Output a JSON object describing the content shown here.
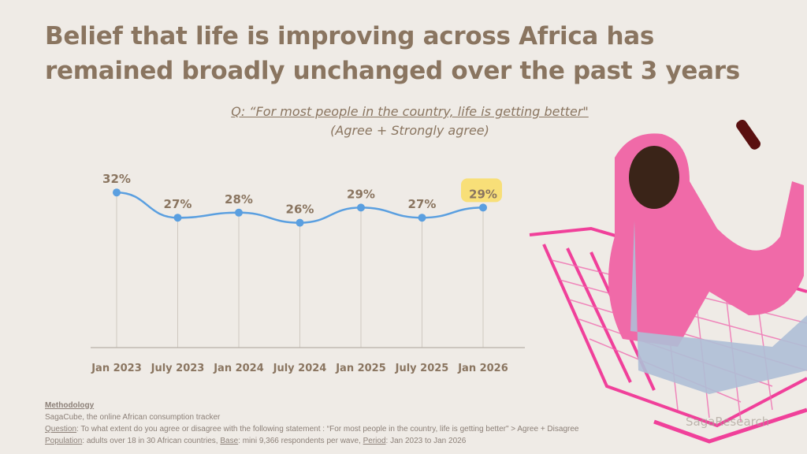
{
  "title": "Belief that life is improving across Africa has remained broadly unchanged over the past 3 years",
  "question": "Q: “For most people in the country, life is getting better\"",
  "subquestion": "(Agree + Strongly agree)",
  "chart_data": {
    "type": "line",
    "categories": [
      "Jan 2023",
      "July 2023",
      "Jan 2024",
      "July 2024",
      "Jan 2025",
      "July 2025",
      "Jan 2026"
    ],
    "values": [
      32,
      27,
      28,
      26,
      29,
      27,
      29
    ],
    "data_labels": [
      "32%",
      "27%",
      "28%",
      "26%",
      "29%",
      "27%",
      "29%"
    ],
    "highlighted": "Jan 2026",
    "unit": "%",
    "line_color": "#5a9fe0",
    "highlight_color": "#f8df78",
    "grid": "vertical drop lines"
  },
  "methodology": {
    "heading": "Methodology",
    "source": "SagaCube, the online African consumption tracker",
    "question_label": "Question",
    "question_text": ": To what extent do you agree or disagree with the following statement : “For most people in the country, life is getting better\" > Agree + Disagree",
    "population_label": "Population",
    "population_text": ": adults over 18 in 30 African countries, ",
    "base_label": "Base",
    "base_text": ": mini 9,366 respondents per wave, ",
    "period_label": "Period",
    "period_text": ": Jan 2023 to Jan 2026"
  },
  "logo": "SagaResearch"
}
